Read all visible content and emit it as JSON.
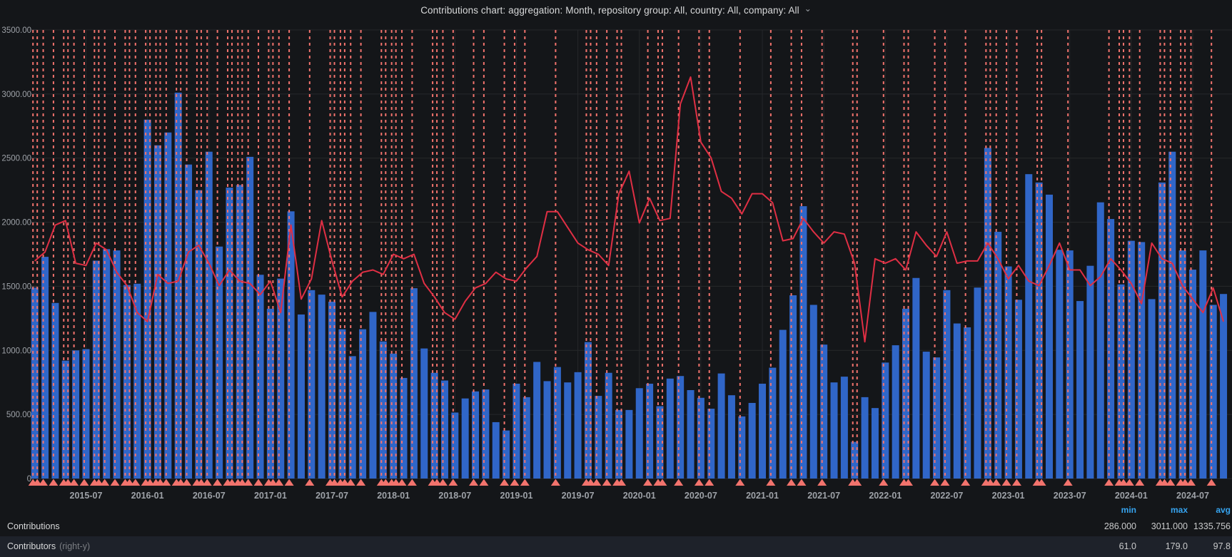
{
  "title": {
    "text": "Contributions chart: aggregation: Month, repository group: All, country: All, company: All",
    "caret": "⌄"
  },
  "colors": {
    "background": "#141619",
    "grid": "#26282b",
    "axis_text": "#9ea2a8",
    "bar": "#3066c8",
    "line": "#e02f44",
    "annotation": "#f2736d",
    "legend_header": "#36a4f0",
    "legend_text": "#d8d9da",
    "legend_value": "#c9cacb",
    "legend_row_highlight": "#1e222a"
  },
  "chart_data": {
    "type": "bar+line",
    "title": "Contributions chart: aggregation: Month, repository group: All, country: All, company: All",
    "x": [
      "2015-02",
      "2015-03",
      "2015-04",
      "2015-05",
      "2015-06",
      "2015-07",
      "2015-08",
      "2015-09",
      "2015-10",
      "2015-11",
      "2015-12",
      "2016-01",
      "2016-02",
      "2016-03",
      "2016-04",
      "2016-05",
      "2016-06",
      "2016-07",
      "2016-08",
      "2016-09",
      "2016-10",
      "2016-11",
      "2016-12",
      "2017-01",
      "2017-02",
      "2017-03",
      "2017-04",
      "2017-05",
      "2017-06",
      "2017-07",
      "2017-08",
      "2017-09",
      "2017-10",
      "2017-11",
      "2017-12",
      "2018-01",
      "2018-02",
      "2018-03",
      "2018-04",
      "2018-05",
      "2018-06",
      "2018-07",
      "2018-08",
      "2018-09",
      "2018-10",
      "2018-11",
      "2018-12",
      "2019-01",
      "2019-02",
      "2019-03",
      "2019-04",
      "2019-05",
      "2019-06",
      "2019-07",
      "2019-08",
      "2019-09",
      "2019-10",
      "2019-11",
      "2019-12",
      "2020-01",
      "2020-02",
      "2020-03",
      "2020-04",
      "2020-05",
      "2020-06",
      "2020-07",
      "2020-08",
      "2020-09",
      "2020-10",
      "2020-11",
      "2020-12",
      "2021-01",
      "2021-02",
      "2021-03",
      "2021-04",
      "2021-05",
      "2021-06",
      "2021-07",
      "2021-08",
      "2021-09",
      "2021-10",
      "2021-11",
      "2021-12",
      "2022-01",
      "2022-02",
      "2022-03",
      "2022-04",
      "2022-05",
      "2022-06",
      "2022-07",
      "2022-08",
      "2022-09",
      "2022-10",
      "2022-11",
      "2022-12",
      "2023-01",
      "2023-02",
      "2023-03",
      "2023-04",
      "2023-05",
      "2023-06",
      "2023-07",
      "2023-08",
      "2023-09",
      "2023-10",
      "2023-11",
      "2023-12",
      "2024-01",
      "2024-02",
      "2024-03",
      "2024-04",
      "2024-05",
      "2024-06",
      "2024-07",
      "2024-08",
      "2024-09",
      "2024-10"
    ],
    "series": [
      {
        "name": "Contributions",
        "type": "bar",
        "axis": "left",
        "color": "#3066c8",
        "values": [
          1490,
          1730,
          1370,
          920,
          1000,
          1010,
          1700,
          1790,
          1780,
          1510,
          1520,
          2800,
          2600,
          2700,
          3011,
          2450,
          2250,
          2550,
          1810,
          2270,
          2290,
          2510,
          1590,
          1325,
          1560,
          2085,
          1280,
          1470,
          1435,
          1380,
          1165,
          955,
          1165,
          1300,
          1070,
          975,
          785,
          1485,
          1015,
          825,
          765,
          515,
          625,
          680,
          695,
          440,
          375,
          740,
          635,
          910,
          760,
          870,
          750,
          830,
          1065,
          645,
          825,
          535,
          535,
          705,
          740,
          565,
          780,
          800,
          690,
          630,
          545,
          820,
          650,
          485,
          590,
          740,
          865,
          1160,
          1430,
          2125,
          1355,
          1045,
          750,
          795,
          286,
          635,
          550,
          905,
          1040,
          1325,
          1565,
          990,
          945,
          1470,
          1210,
          1180,
          1490,
          2580,
          1925,
          1655,
          1395,
          2375,
          2310,
          2215,
          1785,
          1780,
          1385,
          1660,
          2155,
          2025,
          1515,
          1855,
          1845,
          1400,
          2310,
          2550,
          1780,
          1630,
          1780,
          1355,
          1440
        ]
      },
      {
        "name": "Contributors",
        "type": "line",
        "axis": "right",
        "color": "#e02f44",
        "values": [
          97,
          101,
          113,
          115,
          96,
          95,
          105,
          102,
          92,
          86,
          74,
          70,
          91,
          87,
          88,
          101,
          104,
          96,
          86,
          93,
          88,
          87,
          82,
          88,
          74,
          113,
          80,
          89,
          115,
          97,
          81,
          88,
          92,
          93,
          91,
          100,
          98,
          100,
          87,
          81,
          74,
          71,
          79,
          85,
          87,
          92,
          89,
          88,
          94,
          99,
          119,
          119,
          112,
          105,
          102,
          100,
          95,
          127,
          137,
          114,
          125,
          115,
          116,
          167,
          179,
          150,
          143,
          128,
          125,
          118,
          127,
          127,
          123,
          106,
          107,
          116,
          110,
          105,
          110,
          109,
          96,
          61,
          98,
          96,
          98,
          93,
          110,
          104,
          99,
          110,
          96,
          97,
          97,
          105,
          98,
          89,
          95,
          88,
          86,
          95,
          105,
          93,
          93,
          86,
          90,
          98,
          93,
          87,
          78,
          105,
          98,
          96,
          86,
          80,
          74,
          85,
          70
        ]
      }
    ],
    "left_axis": {
      "min": 0,
      "max": 3500,
      "tick_values": [
        0,
        500,
        1000,
        1500,
        2000,
        2500,
        3000,
        3500
      ],
      "tick_labels": [
        "0",
        "500.00",
        "1000.00",
        "1500.00",
        "2000.00",
        "2500.00",
        "3000.00",
        "3500.00"
      ]
    },
    "right_axis": {
      "min": 0,
      "max": 200,
      "visible": false
    },
    "x_tick_indices": [
      5,
      11,
      17,
      23,
      29,
      35,
      41,
      47,
      53,
      59,
      65,
      71,
      77,
      83,
      89,
      95,
      101,
      107,
      113
    ],
    "x_tick_labels": [
      "2015-07",
      "2016-01",
      "2016-07",
      "2017-01",
      "2017-07",
      "2018-01",
      "2018-07",
      "2019-01",
      "2019-07",
      "2020-01",
      "2020-07",
      "2021-01",
      "2021-07",
      "2022-01",
      "2022-07",
      "2023-01",
      "2023-07",
      "2024-01",
      "2024-07"
    ],
    "annotations": {
      "color": "#f2736d",
      "month_indices": [
        0,
        0,
        1,
        2,
        3,
        3,
        4,
        5,
        6,
        6,
        7,
        8,
        9,
        9,
        10,
        11,
        11,
        12,
        12,
        12,
        13,
        14,
        14,
        15,
        16,
        16,
        17,
        18,
        19,
        19,
        20,
        20,
        21,
        22,
        23,
        23,
        24,
        25,
        27,
        29,
        29,
        30,
        30,
        31,
        32,
        34,
        34,
        35,
        35,
        36,
        37,
        39,
        39,
        40,
        41,
        43,
        44,
        46,
        47,
        48,
        51,
        54,
        54,
        54,
        55,
        56,
        57,
        57,
        60,
        61,
        61,
        63,
        65,
        66,
        69,
        72,
        74,
        75,
        77,
        80,
        80,
        83,
        85,
        85,
        88,
        89,
        91,
        93,
        93,
        94,
        95,
        96,
        98,
        98,
        101,
        105,
        106,
        106,
        107,
        108,
        110,
        110,
        111,
        112,
        112,
        113,
        115
      ]
    },
    "grid": true,
    "legend_position": "bottom"
  },
  "legend": {
    "headers": {
      "min": "min",
      "max": "max",
      "avg": "avg"
    },
    "rows": [
      {
        "label": "Contributions",
        "suffix": "",
        "min": "286.000",
        "max": "3011.000",
        "avg": "1335.756"
      },
      {
        "label": "Contributors",
        "suffix": "(right-y)",
        "min": "61.0",
        "max": "179.0",
        "avg": "97.8"
      }
    ]
  }
}
